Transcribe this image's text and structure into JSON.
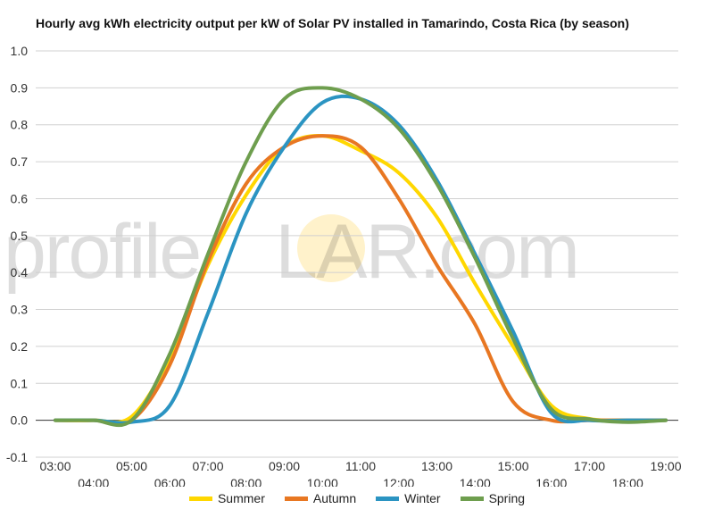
{
  "chart_data": {
    "type": "line",
    "title": "Hourly avg kWh electricity output per kW of Solar PV installed in Tamarindo, Costa Rica (by season)",
    "x": [
      "03:00",
      "04:00",
      "05:00",
      "06:00",
      "07:00",
      "08:00",
      "09:00",
      "10:00",
      "11:00",
      "12:00",
      "13:00",
      "14:00",
      "15:00",
      "16:00",
      "17:00",
      "18:00",
      "19:00"
    ],
    "ylim": [
      -0.1,
      1.0
    ],
    "yticks": [
      "1.0",
      "0.9",
      "0.8",
      "0.7",
      "0.6",
      "0.5",
      "0.4",
      "0.3",
      "0.2",
      "0.1",
      "0.0",
      "-0.1"
    ],
    "grid": true,
    "legend_position": "bottom",
    "series": [
      {
        "name": "Summer",
        "color": "#FFD700",
        "values": [
          0,
          0,
          0.01,
          0.17,
          0.42,
          0.61,
          0.74,
          0.77,
          0.73,
          0.67,
          0.55,
          0.37,
          0.2,
          0.04,
          0.004,
          0,
          0
        ]
      },
      {
        "name": "Autumn",
        "color": "#E87722",
        "values": [
          0,
          0,
          0,
          0.15,
          0.43,
          0.64,
          0.74,
          0.77,
          0.74,
          0.6,
          0.42,
          0.26,
          0.05,
          0.0,
          0,
          0,
          0
        ]
      },
      {
        "name": "Winter",
        "color": "#2B94C2",
        "values": [
          0,
          0,
          -0.005,
          0.04,
          0.29,
          0.56,
          0.74,
          0.86,
          0.87,
          0.8,
          0.65,
          0.45,
          0.24,
          0.02,
          0.0,
          0,
          0
        ]
      },
      {
        "name": "Spring",
        "color": "#6E9E4E",
        "values": [
          0,
          0,
          0.0,
          0.18,
          0.45,
          0.7,
          0.87,
          0.9,
          0.87,
          0.79,
          0.64,
          0.44,
          0.22,
          0.03,
          0.003,
          -0.005,
          0
        ]
      }
    ]
  },
  "watermark": {
    "text_before": "profile",
    "text_after": "LAR.com"
  }
}
